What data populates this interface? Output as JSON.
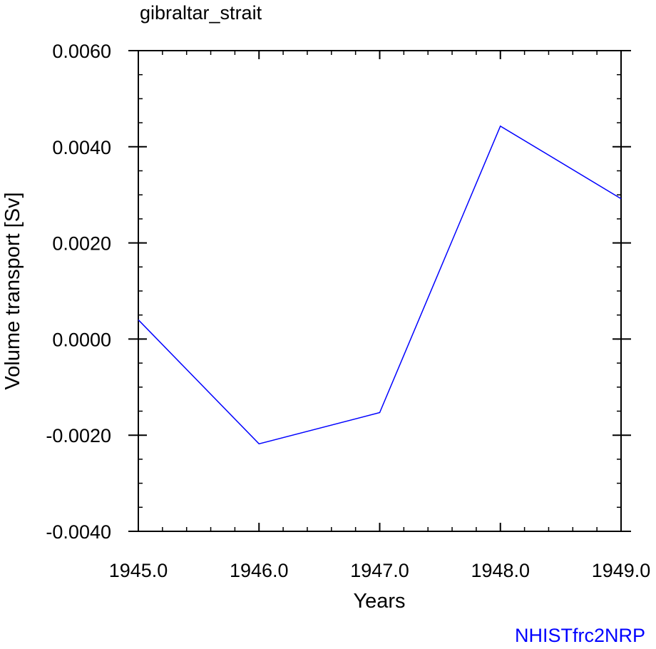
{
  "chart_data": {
    "type": "line",
    "title": "gibraltar_strait",
    "xlabel": "Years",
    "ylabel": "Volume transport [Sv]",
    "xlim": [
      1945.0,
      1949.0
    ],
    "ylim": [
      -0.004,
      0.006
    ],
    "x_ticks": [
      1945.0,
      1946.0,
      1947.0,
      1948.0,
      1949.0
    ],
    "x_tick_labels": [
      "1945.0",
      "1946.0",
      "1947.0",
      "1948.0",
      "1949.0"
    ],
    "y_ticks": [
      -0.004,
      -0.002,
      0.0,
      0.002,
      0.004,
      0.006
    ],
    "y_tick_labels": [
      "-0.0040",
      "-0.0020",
      "0.0000",
      "0.0020",
      "0.0040",
      "0.0060"
    ],
    "grid": false,
    "series": [
      {
        "color": "#0000ff",
        "x": [
          1945.0,
          1946.0,
          1947.0,
          1948.0,
          1949.0
        ],
        "values": [
          0.0004,
          -0.00218,
          -0.00153,
          0.00443,
          0.00292
        ]
      }
    ],
    "annotation": "NHISTfrc2NRP",
    "annotation_color": "#0000ff"
  }
}
